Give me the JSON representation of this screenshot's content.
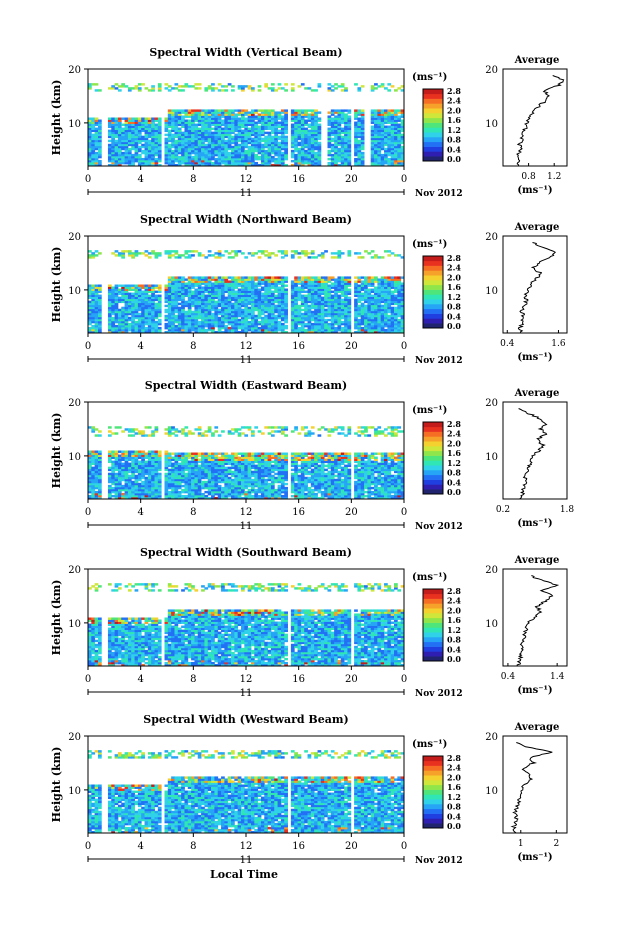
{
  "figure": {
    "date_label": "Nov 2012",
    "day_label": "11",
    "xlabel": "Local Time",
    "ylabel": "Height (km)",
    "unit_label": "(ms⁻¹)",
    "avg_title": "Average",
    "avg_xlabel": "(ms⁻¹)"
  },
  "colorbar": {
    "ticks": [
      "0.0",
      "0.4",
      "0.8",
      "1.2",
      "1.6",
      "2.0",
      "2.4",
      "2.8"
    ],
    "colors": [
      "#20246e",
      "#2f1fb0",
      "#1f3fe0",
      "#2271f5",
      "#26a4f5",
      "#2fd2e8",
      "#2fe6b4",
      "#4ee67a",
      "#8fe64a",
      "#cfe63a",
      "#f5d12f",
      "#f5a12a",
      "#f56e24",
      "#e8311f",
      "#c41b1b"
    ]
  },
  "chart_data": [
    {
      "type": "heatmap",
      "title": "Spectral Width (Vertical Beam)",
      "xlabel": "Local Time",
      "ylabel": "Height (km)",
      "xlim": [
        0,
        24
      ],
      "ylim": [
        2,
        20
      ],
      "xticks": [
        "0",
        "4",
        "8",
        "12",
        "16",
        "20",
        "0"
      ],
      "yticks": [
        "10",
        "20"
      ],
      "colorbar_range": [
        0,
        2.8
      ],
      "data_gaps_hours": [
        [
          1.0,
          1.4
        ],
        [
          5.6,
          5.9
        ],
        [
          15.1,
          15.4
        ],
        [
          17.8,
          18.1
        ],
        [
          19.9,
          20.2
        ],
        [
          21.0,
          21.4
        ]
      ],
      "data_top_km": 18,
      "average_profile": {
        "xlim": [
          0.4,
          1.4
        ],
        "xticks": [
          "0.8",
          "1.2"
        ],
        "height_km": [
          2,
          3,
          4,
          5,
          6,
          7,
          8,
          9,
          10,
          11,
          12,
          13,
          14,
          15,
          16,
          17,
          18,
          19
        ],
        "value": [
          0.62,
          0.65,
          0.64,
          0.67,
          0.66,
          0.7,
          0.72,
          0.75,
          0.78,
          0.82,
          0.86,
          0.95,
          1.05,
          1.12,
          1.05,
          1.28,
          1.35,
          1.1
        ]
      }
    },
    {
      "type": "heatmap",
      "title": "Spectral Width (Northward Beam)",
      "xlabel": "Local Time",
      "ylabel": "Height (km)",
      "xlim": [
        0,
        24
      ],
      "ylim": [
        2,
        20
      ],
      "xticks": [
        "0",
        "4",
        "8",
        "12",
        "16",
        "20",
        "0"
      ],
      "yticks": [
        "10",
        "20"
      ],
      "colorbar_range": [
        0,
        2.8
      ],
      "data_gaps_hours": [
        [
          1.0,
          1.4
        ],
        [
          5.6,
          5.9
        ],
        [
          15.1,
          15.4
        ],
        [
          19.9,
          20.2
        ]
      ],
      "data_top_km": 18,
      "average_profile": {
        "xlim": [
          0.3,
          1.8
        ],
        "xticks": [
          "0.4",
          "1.6"
        ],
        "height_km": [
          2,
          3,
          4,
          5,
          6,
          7,
          8,
          9,
          10,
          11,
          12,
          13,
          14,
          15,
          16,
          17,
          18,
          19
        ],
        "value": [
          0.72,
          0.7,
          0.75,
          0.78,
          0.74,
          0.8,
          0.85,
          0.82,
          0.9,
          0.95,
          1.05,
          1.2,
          1.0,
          1.15,
          1.4,
          1.55,
          1.2,
          0.95
        ]
      }
    },
    {
      "type": "heatmap",
      "title": "Spectral Width (Eastward Beam)",
      "xlabel": "Local Time",
      "ylabel": "Height (km)",
      "xlim": [
        0,
        24
      ],
      "ylim": [
        2,
        20
      ],
      "xticks": [
        "0",
        "4",
        "8",
        "12",
        "16",
        "20",
        "0"
      ],
      "yticks": [
        "10",
        "20"
      ],
      "colorbar_range": [
        0,
        2.8
      ],
      "data_gaps_hours": [
        [
          1.0,
          1.4
        ],
        [
          5.6,
          5.9
        ],
        [
          15.1,
          15.4
        ],
        [
          19.9,
          20.2
        ]
      ],
      "data_top_km": 16,
      "average_profile": {
        "xlim": [
          0.2,
          1.8
        ],
        "xticks": [
          "0.2",
          "1.8"
        ],
        "height_km": [
          2,
          3,
          4,
          5,
          6,
          7,
          8,
          9,
          10,
          11,
          12,
          13,
          14,
          15,
          16,
          17,
          18,
          19
        ],
        "value": [
          0.65,
          0.7,
          0.72,
          0.78,
          0.75,
          0.82,
          0.86,
          0.9,
          0.95,
          1.1,
          1.2,
          1.05,
          1.25,
          1.15,
          1.3,
          1.1,
          0.8,
          0.55
        ]
      }
    },
    {
      "type": "heatmap",
      "title": "Spectral Width (Southward Beam)",
      "xlabel": "Local Time",
      "ylabel": "Height (km)",
      "xlim": [
        0,
        24
      ],
      "ylim": [
        2,
        20
      ],
      "xticks": [
        "0",
        "4",
        "8",
        "12",
        "16",
        "20",
        "0"
      ],
      "yticks": [
        "10",
        "20"
      ],
      "colorbar_range": [
        0,
        2.8
      ],
      "data_gaps_hours": [
        [
          1.0,
          1.4
        ],
        [
          5.6,
          5.9
        ],
        [
          15.1,
          15.4
        ],
        [
          19.9,
          20.2
        ]
      ],
      "data_top_km": 18,
      "average_profile": {
        "xlim": [
          0.3,
          1.6
        ],
        "xticks": [
          "0.4",
          "1.4"
        ],
        "height_km": [
          2,
          3,
          4,
          5,
          6,
          7,
          8,
          9,
          10,
          11,
          12,
          13,
          14,
          15,
          16,
          17,
          18,
          19
        ],
        "value": [
          0.62,
          0.64,
          0.66,
          0.7,
          0.68,
          0.72,
          0.75,
          0.78,
          0.82,
          0.95,
          1.05,
          1.0,
          1.15,
          1.3,
          1.1,
          1.4,
          1.05,
          0.8
        ]
      }
    },
    {
      "type": "heatmap",
      "title": "Spectral Width (Westward Beam)",
      "xlabel": "Local Time",
      "ylabel": "Height (km)",
      "xlim": [
        0,
        24
      ],
      "ylim": [
        2,
        20
      ],
      "xticks": [
        "0",
        "4",
        "8",
        "12",
        "16",
        "20",
        "0"
      ],
      "yticks": [
        "10",
        "20"
      ],
      "colorbar_range": [
        0,
        2.8
      ],
      "data_gaps_hours": [
        [
          1.0,
          1.4
        ],
        [
          5.6,
          5.9
        ],
        [
          15.1,
          15.4
        ],
        [
          19.9,
          20.2
        ]
      ],
      "data_top_km": 18,
      "average_profile": {
        "xlim": [
          0.5,
          2.3
        ],
        "xticks": [
          "1",
          "2"
        ],
        "height_km": [
          2,
          3,
          4,
          5,
          6,
          7,
          8,
          9,
          10,
          11,
          12,
          13,
          14,
          15,
          16,
          17,
          18,
          19
        ],
        "value": [
          0.82,
          0.8,
          0.85,
          0.88,
          0.84,
          0.9,
          0.95,
          0.98,
          1.02,
          1.1,
          1.3,
          1.2,
          1.05,
          1.35,
          1.25,
          1.9,
          1.15,
          0.85
        ]
      }
    }
  ]
}
